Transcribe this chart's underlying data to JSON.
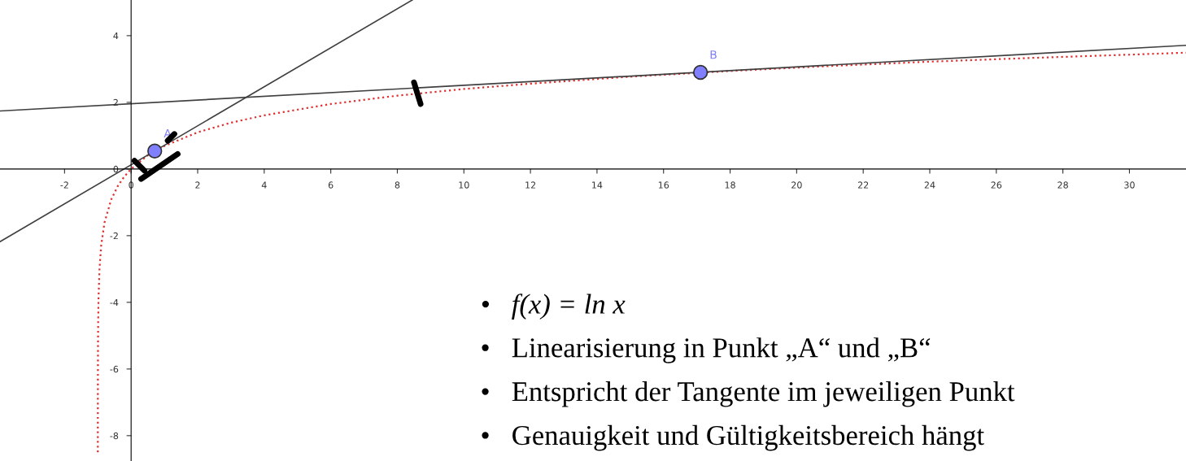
{
  "chart_data": {
    "type": "line",
    "xlim": [
      -3.94,
      31.7
    ],
    "ylim": [
      -8.76,
      5.07
    ],
    "xticks": [
      -2,
      {
        "value": 0,
        "label": "0"
      },
      2,
      4,
      6,
      8,
      10,
      12,
      14,
      16,
      18,
      20,
      22,
      24,
      26,
      28,
      30
    ],
    "yticks": [
      -8,
      -6,
      -4,
      -2,
      {
        "value": 0,
        "label": "0"
      },
      2,
      4
    ],
    "grid": false,
    "legend": false,
    "series": [
      {
        "color": "#e03030",
        "line_style": "dotted",
        "x": [
          -0.9998,
          -0.999,
          -0.995,
          -0.99,
          -0.98,
          -0.95,
          -0.9,
          -0.8,
          -0.6,
          -0.4,
          -0.2,
          0,
          0.5,
          1,
          2,
          3,
          4,
          6,
          8,
          10,
          12,
          15,
          18,
          21,
          24,
          27,
          30,
          31.7
        ],
        "values": [
          -8.5,
          -6.9,
          -5.3,
          -4.6,
          -3.9,
          -3.0,
          -2.3,
          -1.61,
          -0.92,
          -0.51,
          -0.22,
          0,
          0.41,
          0.69,
          1.1,
          1.39,
          1.61,
          1.95,
          2.2,
          2.4,
          2.56,
          2.77,
          2.94,
          3.09,
          3.22,
          3.33,
          3.43,
          3.49
        ]
      },
      {
        "color": "#404040",
        "line_style": "solid",
        "x": [
          -3.94,
          8.45
        ],
        "values": [
          -2.18,
          5.07
        ]
      },
      {
        "color": "#404040",
        "line_style": "solid",
        "x": [
          -3.94,
          31.7
        ],
        "values": [
          1.74,
          3.71
        ]
      },
      {
        "type": "scatter",
        "color": "#8080ff",
        "marker": "circle",
        "x": [
          0.71,
          17.11
        ],
        "values": [
          0.54,
          2.9
        ]
      }
    ],
    "annotations": [
      {
        "text": "A",
        "x": 0.71,
        "y": 0.54
      },
      {
        "text": "B",
        "x": 17.11,
        "y": 2.9
      },
      "•   f(x) = ln x",
      "•   Linearisierung in Punkt „A“ und „B“",
      "•   Entspricht der Tangente im jeweiligen Punkt",
      "•   Genauigkeit und Gültigkeitsbereich hängt"
    ]
  }
}
